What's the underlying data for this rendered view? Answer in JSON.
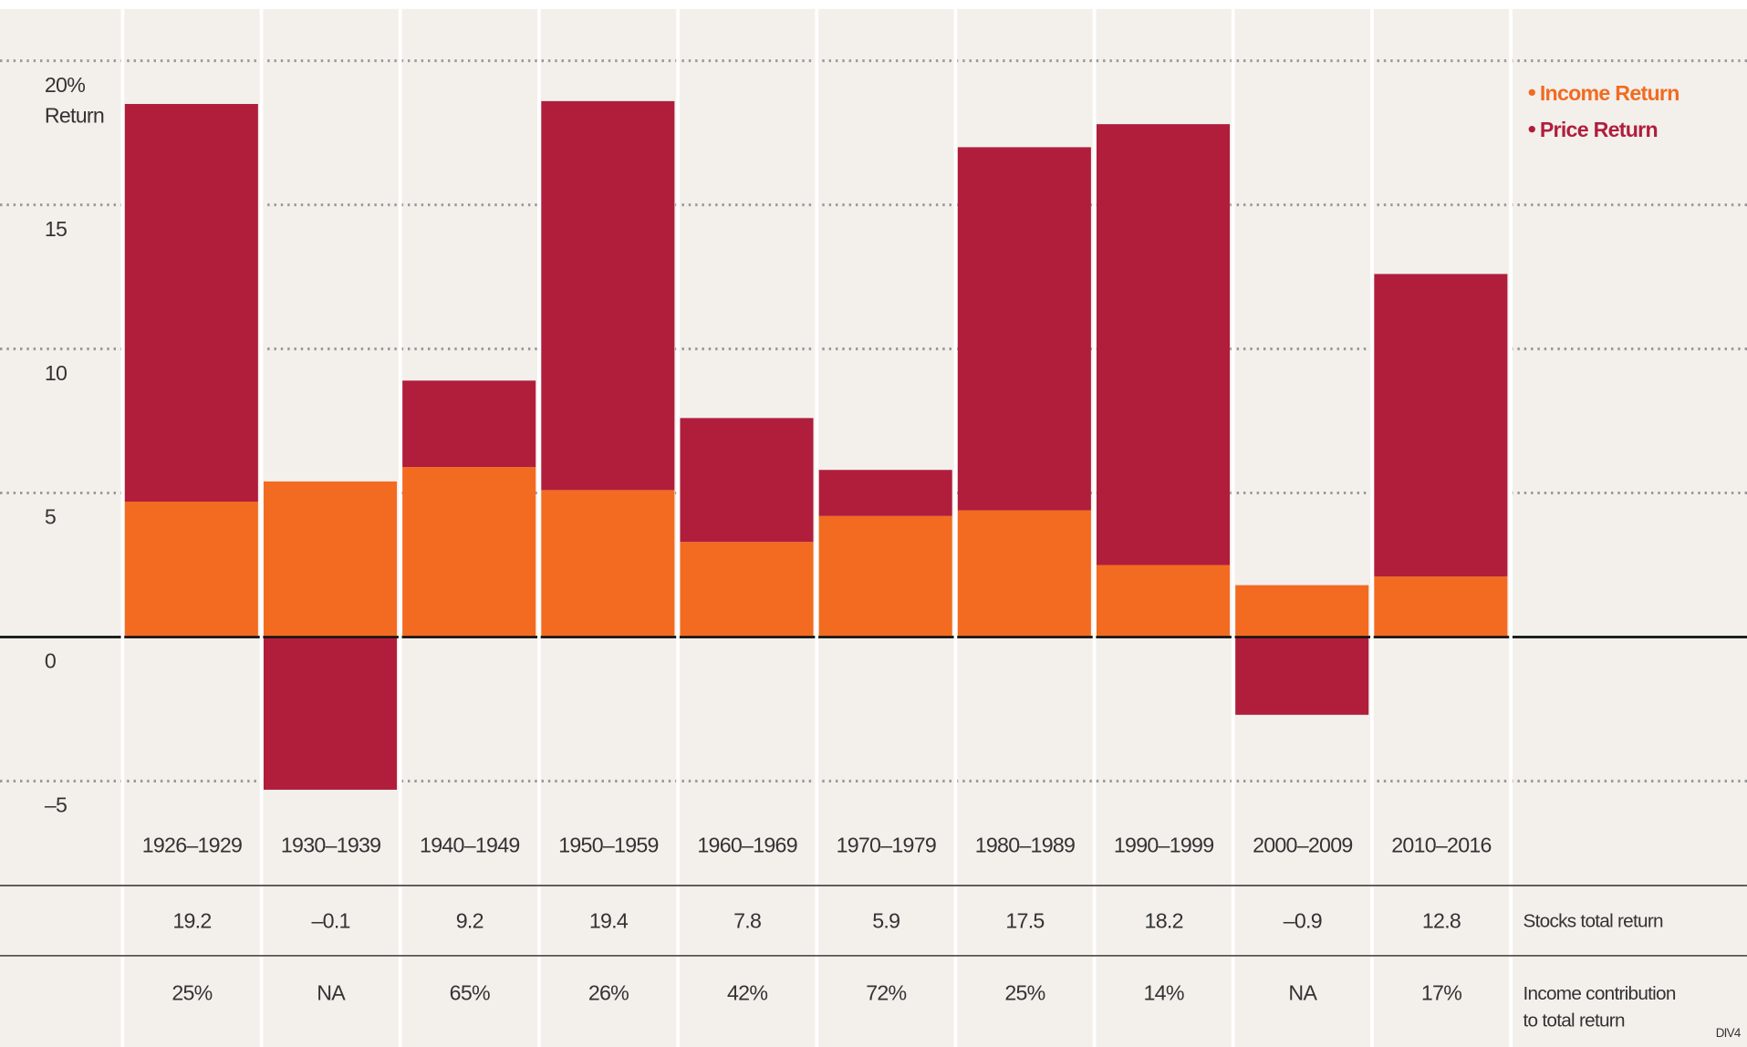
{
  "chart_data": {
    "type": "stacked-bar",
    "y_label": "Return",
    "categories": [
      "1926–1929",
      "1930–1939",
      "1940–1949",
      "1950–1959",
      "1960–1969",
      "1970–1979",
      "1980–1989",
      "1990–1999",
      "2000–2009",
      "2010–2016"
    ],
    "series": [
      {
        "name": "Income Return",
        "color": "#f26b21",
        "values": [
          4.7,
          5.4,
          5.9,
          5.1,
          3.3,
          4.2,
          4.4,
          2.5,
          1.8,
          2.1
        ]
      },
      {
        "name": "Price Return",
        "color": "#b01e3c",
        "values": [
          13.8,
          -5.3,
          3.0,
          13.5,
          4.3,
          1.6,
          12.6,
          15.3,
          -2.7,
          10.5
        ]
      }
    ],
    "ylim": [
      -7,
      21.8
    ],
    "yticks": [
      {
        "value": -5,
        "label": "–5"
      },
      0,
      5,
      10,
      15,
      {
        "value": 20,
        "label": "20%"
      }
    ],
    "grid": true,
    "legend": "top-right",
    "table": [
      {
        "label": [
          "Stocks total return"
        ],
        "values": [
          "19.2",
          "–0.1",
          "9.2",
          "19.4",
          "7.8",
          "5.9",
          "17.5",
          "18.2",
          "–0.9",
          "12.8"
        ]
      },
      {
        "label": [
          "Income contribution",
          "to total return"
        ],
        "values": [
          "25%",
          "NA",
          "65%",
          "26%",
          "42%",
          "72%",
          "25%",
          "14%",
          "NA",
          "17%"
        ]
      }
    ],
    "footnote": "DIV4"
  }
}
